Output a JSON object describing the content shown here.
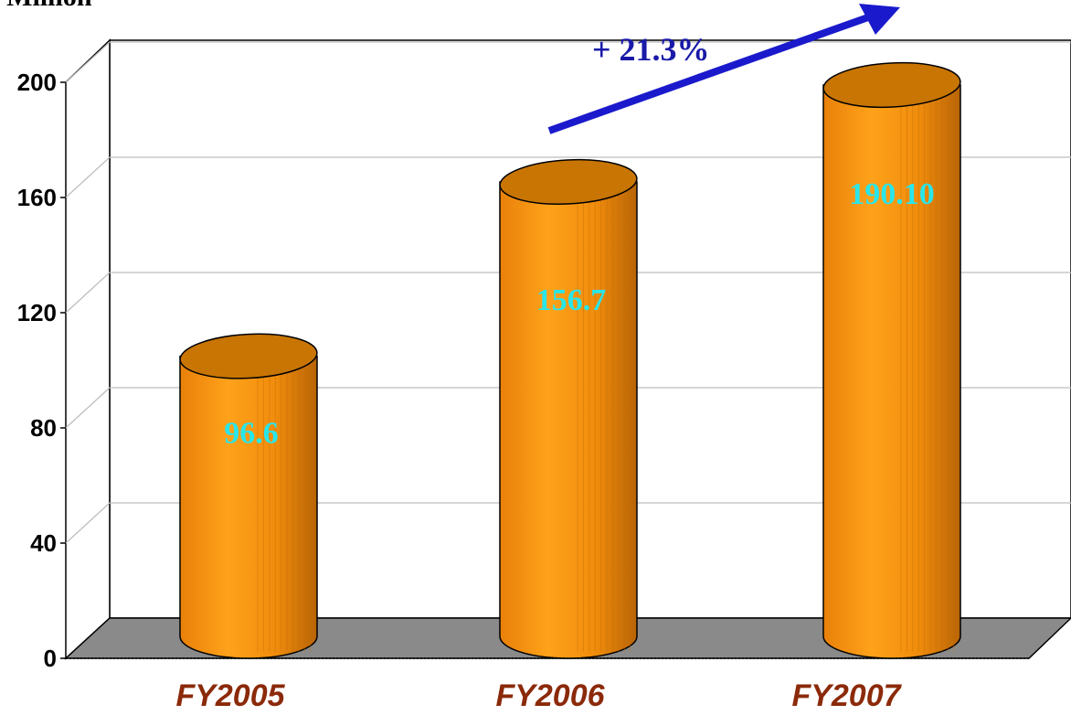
{
  "chart_data": {
    "type": "bar",
    "title": "",
    "unit_label": "D Million",
    "xlabel": "",
    "ylabel": "",
    "categories": [
      "FY2005",
      "FY2006",
      "FY2007"
    ],
    "values": [
      96.6,
      156.7,
      190.1
    ],
    "data_labels": [
      "96.6",
      "156.7",
      "190.10"
    ],
    "yticks": [
      "0",
      "40",
      "80",
      "120",
      "160",
      "200"
    ],
    "ylim": [
      0,
      200
    ],
    "grid": true,
    "legend": "none",
    "annotation": "+ 21.3%",
    "colors": {
      "bar": "#f39a0c",
      "bar_top": "#c87504",
      "label": "#29e6ea",
      "xtick": "#8b2a0a",
      "arrow": "#1a1acc",
      "floor": "#8a8a8a"
    }
  }
}
